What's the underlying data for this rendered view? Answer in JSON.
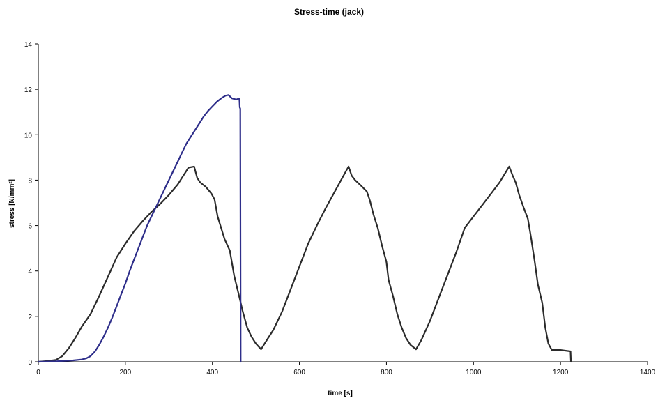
{
  "chart_data": {
    "type": "line",
    "title": "Stress-time (jack)",
    "xlabel": "time [s]",
    "ylabel": "stress [N/mm²]",
    "xlim": [
      0,
      1400
    ],
    "ylim": [
      0,
      14
    ],
    "x_ticks": [
      "0",
      "200",
      "400",
      "600",
      "800",
      "1000",
      "1200",
      "1400"
    ],
    "y_ticks": [
      "0",
      "2",
      "4",
      "6",
      "8",
      "10",
      "12",
      "14"
    ],
    "grid": false,
    "legend": "none",
    "series": [
      {
        "color": "#2b2b2b",
        "points": [
          [
            0,
            0
          ],
          [
            20,
            0.03
          ],
          [
            40,
            0.08
          ],
          [
            55,
            0.25
          ],
          [
            70,
            0.6
          ],
          [
            85,
            1.05
          ],
          [
            100,
            1.55
          ],
          [
            120,
            2.1
          ],
          [
            140,
            2.9
          ],
          [
            160,
            3.75
          ],
          [
            180,
            4.6
          ],
          [
            200,
            5.2
          ],
          [
            220,
            5.75
          ],
          [
            240,
            6.2
          ],
          [
            260,
            6.6
          ],
          [
            280,
            6.95
          ],
          [
            300,
            7.35
          ],
          [
            320,
            7.8
          ],
          [
            335,
            8.25
          ],
          [
            345,
            8.55
          ],
          [
            358,
            8.6
          ],
          [
            365,
            8.1
          ],
          [
            372,
            7.9
          ],
          [
            385,
            7.7
          ],
          [
            398,
            7.4
          ],
          [
            405,
            7.15
          ],
          [
            412,
            6.4
          ],
          [
            420,
            5.9
          ],
          [
            428,
            5.4
          ],
          [
            440,
            4.9
          ],
          [
            450,
            3.8
          ],
          [
            460,
            3.0
          ],
          [
            470,
            2.2
          ],
          [
            480,
            1.5
          ],
          [
            490,
            1.1
          ],
          [
            500,
            0.8
          ],
          [
            512,
            0.55
          ],
          [
            520,
            0.8
          ],
          [
            540,
            1.4
          ],
          [
            560,
            2.2
          ],
          [
            580,
            3.2
          ],
          [
            600,
            4.2
          ],
          [
            620,
            5.2
          ],
          [
            640,
            6.0
          ],
          [
            660,
            6.75
          ],
          [
            680,
            7.45
          ],
          [
            700,
            8.15
          ],
          [
            713,
            8.6
          ],
          [
            720,
            8.2
          ],
          [
            728,
            8.0
          ],
          [
            742,
            7.75
          ],
          [
            755,
            7.5
          ],
          [
            762,
            7.1
          ],
          [
            770,
            6.5
          ],
          [
            780,
            5.9
          ],
          [
            790,
            5.1
          ],
          [
            800,
            4.4
          ],
          [
            805,
            3.6
          ],
          [
            815,
            2.9
          ],
          [
            825,
            2.1
          ],
          [
            835,
            1.5
          ],
          [
            845,
            1.05
          ],
          [
            855,
            0.75
          ],
          [
            868,
            0.55
          ],
          [
            880,
            0.95
          ],
          [
            900,
            1.8
          ],
          [
            920,
            2.8
          ],
          [
            940,
            3.8
          ],
          [
            960,
            4.8
          ],
          [
            980,
            5.9
          ],
          [
            1000,
            6.4
          ],
          [
            1020,
            6.9
          ],
          [
            1040,
            7.4
          ],
          [
            1060,
            7.9
          ],
          [
            1082,
            8.6
          ],
          [
            1090,
            8.2
          ],
          [
            1097,
            7.9
          ],
          [
            1105,
            7.35
          ],
          [
            1115,
            6.8
          ],
          [
            1125,
            6.3
          ],
          [
            1132,
            5.5
          ],
          [
            1140,
            4.5
          ],
          [
            1148,
            3.4
          ],
          [
            1158,
            2.6
          ],
          [
            1165,
            1.5
          ],
          [
            1172,
            0.8
          ],
          [
            1180,
            0.52
          ],
          [
            1200,
            0.52
          ],
          [
            1215,
            0.48
          ],
          [
            1223,
            0.46
          ],
          [
            1224,
            0
          ]
        ]
      },
      {
        "color": "#2e2e8a",
        "points": [
          [
            0,
            0
          ],
          [
            40,
            0.02
          ],
          [
            80,
            0.06
          ],
          [
            100,
            0.1
          ],
          [
            110,
            0.15
          ],
          [
            120,
            0.25
          ],
          [
            130,
            0.45
          ],
          [
            140,
            0.75
          ],
          [
            150,
            1.1
          ],
          [
            160,
            1.5
          ],
          [
            170,
            1.95
          ],
          [
            180,
            2.45
          ],
          [
            190,
            2.95
          ],
          [
            200,
            3.45
          ],
          [
            210,
            4.0
          ],
          [
            220,
            4.5
          ],
          [
            230,
            5.0
          ],
          [
            240,
            5.5
          ],
          [
            250,
            6.0
          ],
          [
            260,
            6.4
          ],
          [
            270,
            6.8
          ],
          [
            280,
            7.2
          ],
          [
            290,
            7.6
          ],
          [
            300,
            8.0
          ],
          [
            310,
            8.4
          ],
          [
            320,
            8.8
          ],
          [
            330,
            9.2
          ],
          [
            340,
            9.6
          ],
          [
            350,
            9.9
          ],
          [
            360,
            10.2
          ],
          [
            370,
            10.5
          ],
          [
            380,
            10.8
          ],
          [
            390,
            11.05
          ],
          [
            400,
            11.25
          ],
          [
            410,
            11.45
          ],
          [
            420,
            11.6
          ],
          [
            430,
            11.72
          ],
          [
            437,
            11.75
          ],
          [
            445,
            11.6
          ],
          [
            455,
            11.55
          ],
          [
            462,
            11.6
          ],
          [
            463,
            11.2
          ],
          [
            464,
            11.15
          ],
          [
            465,
            0
          ]
        ]
      }
    ]
  }
}
